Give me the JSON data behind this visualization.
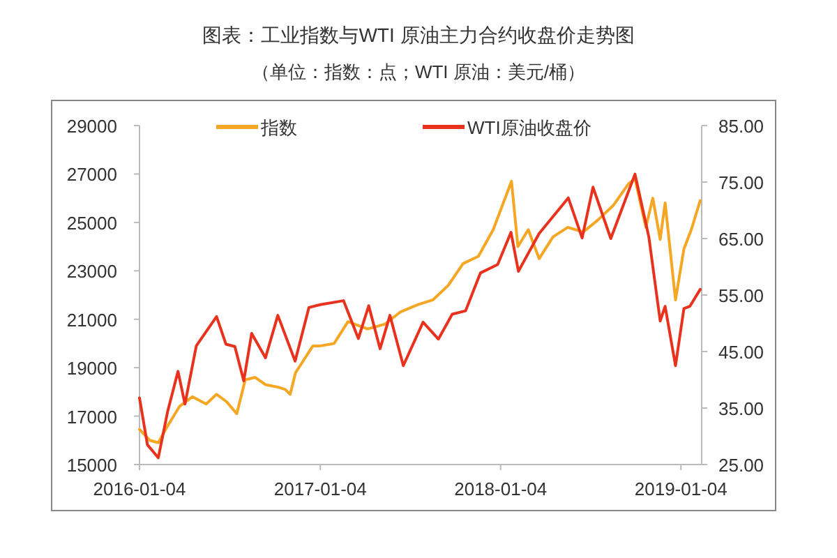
{
  "chart_data": {
    "type": "line",
    "title": "图表：工业指数与WTI 原油主力合约收盘价走势图",
    "subtitle": "（单位：指数：点；WTI 原油：美元/桶）",
    "legend": "top",
    "grid": false,
    "marker": "none",
    "line_style": "solid",
    "xlim": [
      "2016-01-04",
      "2019-02-15"
    ],
    "xticks": [
      "2016-01-04",
      "2017-01-04",
      "2018-01-04",
      "2019-01-04"
    ],
    "ylim": [
      15000,
      29000
    ],
    "yticks": [
      15000,
      17000,
      19000,
      21000,
      23000,
      25000,
      27000,
      29000
    ],
    "y2lim": [
      25,
      85
    ],
    "y2ticks": [
      {
        "value": 25,
        "label": "25.00"
      },
      {
        "value": 35,
        "label": "35.00"
      },
      {
        "value": 45,
        "label": "45.00"
      },
      {
        "value": 55,
        "label": "55.00"
      },
      {
        "value": 65,
        "label": "65.00"
      },
      {
        "value": 75,
        "label": "75.00"
      },
      {
        "value": 85,
        "label": "85.00"
      }
    ],
    "series": [
      {
        "name": "指数",
        "color": "#f5a623",
        "x": [
          "2016-01-04",
          "2016-01-25",
          "2016-02-11",
          "2016-03-01",
          "2016-03-25",
          "2016-04-20",
          "2016-05-18",
          "2016-06-08",
          "2016-06-28",
          "2016-07-19",
          "2016-08-05",
          "2016-08-25",
          "2016-09-15",
          "2016-10-10",
          "2016-10-25",
          "2016-11-04",
          "2016-11-15",
          "2016-12-01",
          "2016-12-20",
          "2017-01-04",
          "2017-02-01",
          "2017-03-01",
          "2017-04-10",
          "2017-05-15",
          "2017-06-15",
          "2017-07-20",
          "2017-08-20",
          "2017-09-20",
          "2017-10-20",
          "2017-11-20",
          "2017-12-20",
          "2018-01-26",
          "2018-02-08",
          "2018-03-01",
          "2018-03-23",
          "2018-04-20",
          "2018-05-20",
          "2018-06-20",
          "2018-07-20",
          "2018-08-20",
          "2018-09-20",
          "2018-10-03",
          "2018-10-25",
          "2018-11-08",
          "2018-11-23",
          "2018-12-03",
          "2018-12-24",
          "2019-01-10",
          "2019-01-25",
          "2019-02-12"
        ],
        "values": [
          16450,
          16000,
          15900,
          16600,
          17400,
          17800,
          17500,
          17900,
          17600,
          17100,
          18500,
          18600,
          18300,
          18200,
          18100,
          17900,
          18800,
          19300,
          19900,
          19900,
          20000,
          20900,
          20600,
          20800,
          21300,
          21600,
          21800,
          22400,
          23300,
          23600,
          24700,
          26700,
          24000,
          24700,
          23500,
          24400,
          24800,
          24600,
          25100,
          25700,
          26600,
          26800,
          24800,
          26000,
          24300,
          25800,
          21800,
          23900,
          24700,
          25900
        ]
      },
      {
        "name": "WTI原油收盘价",
        "color": "#e8321e",
        "axis": "y2",
        "x": [
          "2016-01-04",
          "2016-01-20",
          "2016-02-11",
          "2016-03-01",
          "2016-03-22",
          "2016-04-05",
          "2016-04-28",
          "2016-06-08",
          "2016-06-27",
          "2016-07-15",
          "2016-08-02",
          "2016-08-18",
          "2016-09-15",
          "2016-10-10",
          "2016-11-14",
          "2016-12-12",
          "2017-01-04",
          "2017-02-20",
          "2017-03-22",
          "2017-04-12",
          "2017-05-05",
          "2017-05-25",
          "2017-06-21",
          "2017-07-31",
          "2017-08-31",
          "2017-09-28",
          "2017-10-25",
          "2017-11-24",
          "2017-12-29",
          "2018-01-25",
          "2018-02-09",
          "2018-03-23",
          "2018-05-21",
          "2018-06-18",
          "2018-07-10",
          "2018-08-15",
          "2018-10-03",
          "2018-10-31",
          "2018-11-23",
          "2018-12-03",
          "2018-12-24",
          "2019-01-10",
          "2019-01-22",
          "2019-02-12"
        ],
        "values": [
          36.8,
          28.5,
          26.2,
          34.4,
          41.5,
          35.7,
          46.0,
          51.2,
          46.3,
          45.9,
          39.8,
          48.2,
          43.9,
          51.4,
          43.3,
          52.8,
          53.3,
          54.0,
          47.3,
          53.1,
          45.5,
          51.4,
          42.5,
          50.2,
          47.2,
          51.6,
          52.2,
          58.9,
          60.4,
          66.1,
          59.2,
          65.9,
          72.2,
          65.1,
          74.1,
          65.0,
          76.4,
          65.3,
          50.4,
          53.0,
          42.5,
          52.6,
          53.0,
          56.0
        ]
      }
    ]
  }
}
